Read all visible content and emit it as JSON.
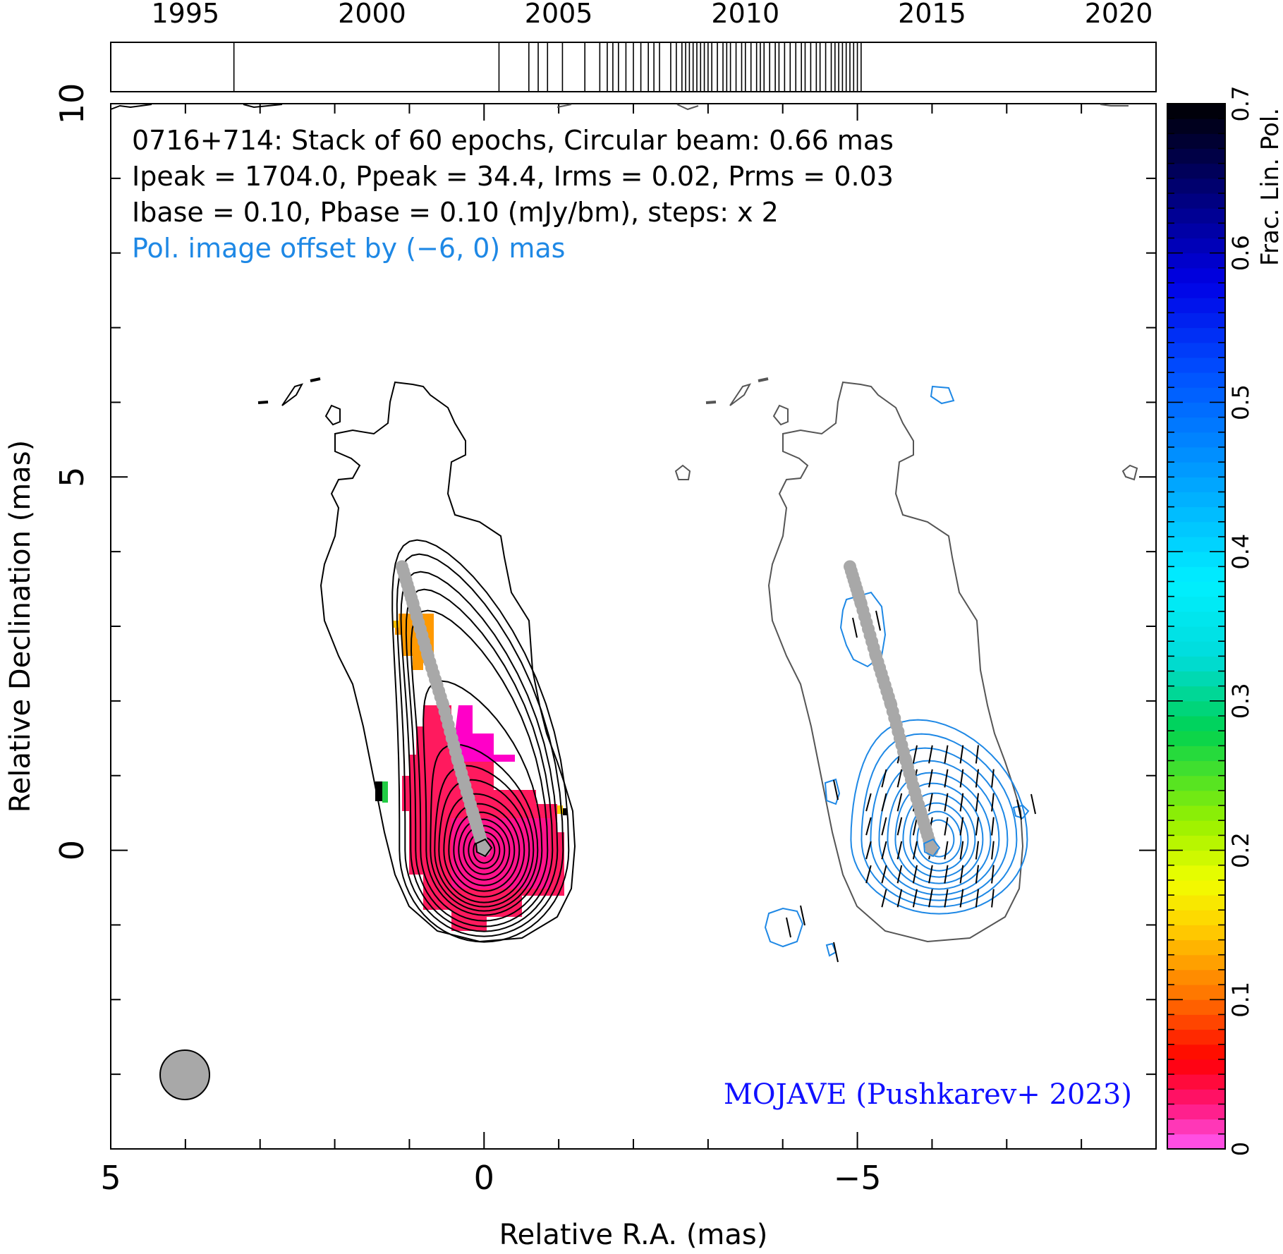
{
  "chart_data": {
    "type": "contour",
    "source": "0716+714",
    "header_lines": [
      "0716+714: Stack of 60 epochs, Circular beam: 0.66 mas",
      "Ipeak = 1704.0, Ppeak = 34.4, Irms = 0.02, Prms = 0.03",
      "Ibase = 0.10, Pbase = 0.10 (mJy/bm), steps: x 2"
    ],
    "offset_note": "Pol. image offset by (−6, 0) mas",
    "credit": "MOJAVE (Pushkarev+ 2023)",
    "xlabel": "Relative R.A. (mas)",
    "ylabel": "Relative Declination (mas)",
    "colorbar_label": "Frac. Lin. Pol.",
    "xlim": [
      5,
      -9
    ],
    "ylim": [
      -4,
      10
    ],
    "x_ticks": [
      5,
      0,
      -5
    ],
    "x_tick_labels": [
      "5",
      "0",
      "−5"
    ],
    "y_ticks": [
      0,
      5,
      10
    ],
    "y_tick_labels": [
      "0",
      "5",
      "10"
    ],
    "colorbar_range": [
      0,
      0.7
    ],
    "colorbar_ticks": [
      0,
      0.1,
      0.2,
      0.3,
      0.4,
      0.5,
      0.6,
      0.7
    ],
    "colorbar_tick_labels": [
      "0",
      "0.1",
      "0.2",
      "0.3",
      "0.4",
      "0.5",
      "0.6",
      "0.7"
    ],
    "epoch_axis": {
      "range": [
        1993,
        2021
      ],
      "tick_labels": [
        "1995",
        "2000",
        "2005",
        "2010",
        "2015",
        "2020"
      ],
      "ticks": [
        1995,
        2000,
        2005,
        2010,
        2015,
        2020
      ],
      "epochs": [
        1996.3,
        2003.4,
        2004.2,
        2004.45,
        2004.7,
        2005.1,
        2005.7,
        2006.1,
        2006.3,
        2006.45,
        2006.6,
        2006.8,
        2007.0,
        2007.2,
        2007.4,
        2007.55,
        2007.7,
        2008.0,
        2008.15,
        2008.3,
        2008.4,
        2008.5,
        2008.6,
        2008.7,
        2008.8,
        2008.9,
        2009.0,
        2009.1,
        2009.25,
        2009.4,
        2009.5,
        2009.6,
        2009.75,
        2009.9,
        2010.0,
        2010.15,
        2010.3,
        2010.4,
        2010.5,
        2010.65,
        2010.8,
        2010.9,
        2011.05,
        2011.2,
        2011.35,
        2011.5,
        2011.6,
        2011.75,
        2011.9,
        2012.0,
        2012.15,
        2012.3,
        2012.4,
        2012.5,
        2012.6,
        2012.7,
        2012.8,
        2012.9,
        2013.0,
        2013.1
      ]
    },
    "beam_diameter_mas": 0.66,
    "colors": {
      "total_intensity_contours": "#000000",
      "pol_contours": "#1e88e5",
      "outer_contour_right": "#555555",
      "ridge": "#a8a8a8",
      "fracpol_core": "#ff1a7a",
      "fracpol_high": "#ff00c8",
      "fracpol_knot": "#ff8c00",
      "credit": "#1010ff",
      "offset_note": "#1e88e5",
      "beam_fill": "#a8a8a8"
    },
    "ridgeline": [
      [
        1.1,
        3.8
      ],
      [
        0.95,
        3.3
      ],
      [
        0.75,
        2.6
      ],
      [
        0.55,
        1.95
      ],
      [
        0.35,
        1.2
      ],
      [
        0.15,
        0.5
      ],
      [
        0.0,
        0.0
      ]
    ],
    "core_position_mas": [
      0,
      0
    ],
    "pol_image_offset_mas": [
      -6,
      0
    ]
  }
}
